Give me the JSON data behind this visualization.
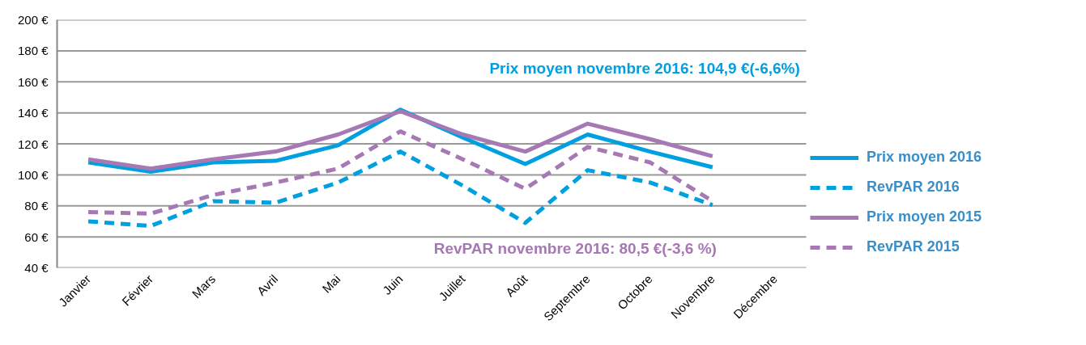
{
  "chart_data": {
    "type": "line",
    "categories": [
      "Janvier",
      "Février",
      "Mars",
      "Avril",
      "Mai",
      "Juin",
      "Juillet",
      "Août",
      "Septembre",
      "Octobre",
      "Novembre",
      "Décembre"
    ],
    "series": [
      {
        "name": "Prix moyen 2016",
        "color": "#00a0e0",
        "line_style": "solid",
        "values": [
          108,
          102,
          108,
          109,
          119,
          142,
          124,
          107,
          126,
          115,
          104.9,
          null
        ]
      },
      {
        "name": "RevPAR 2016",
        "color": "#00a0e0",
        "line_style": "dashed",
        "values": [
          70,
          67,
          83,
          82,
          95,
          115,
          93,
          69,
          103,
          95,
          80.5,
          null
        ]
      },
      {
        "name": "Prix moyen 2015",
        "color": "#a678b4",
        "line_style": "solid",
        "values": [
          110,
          104,
          110,
          115,
          126,
          141,
          126,
          115,
          133,
          123,
          112,
          null
        ]
      },
      {
        "name": "RevPAR 2015",
        "color": "#a678b4",
        "line_style": "dashed",
        "values": [
          76,
          75,
          87,
          95,
          104,
          128,
          110,
          91,
          118,
          108,
          83,
          null
        ]
      }
    ],
    "ylim": [
      40,
      200
    ],
    "yticks": [
      {
        "value": 40,
        "label": "40 €"
      },
      {
        "value": 60,
        "label": "60 €"
      },
      {
        "value": 80,
        "label": "80 €"
      },
      {
        "value": 100,
        "label": "100 €"
      },
      {
        "value": 120,
        "label": "120 €"
      },
      {
        "value": 140,
        "label": "140 €"
      },
      {
        "value": 160,
        "label": "160 €"
      },
      {
        "value": 180,
        "label": "180 €"
      },
      {
        "value": 200,
        "label": "200 €"
      }
    ],
    "grid": "y",
    "legend": "right",
    "annotations": [
      "Prix moyen novembre 2016: 104,9 €(-6,6%)",
      "RevPAR novembre 2016: 80,5 €(-3,6 %)"
    ]
  }
}
